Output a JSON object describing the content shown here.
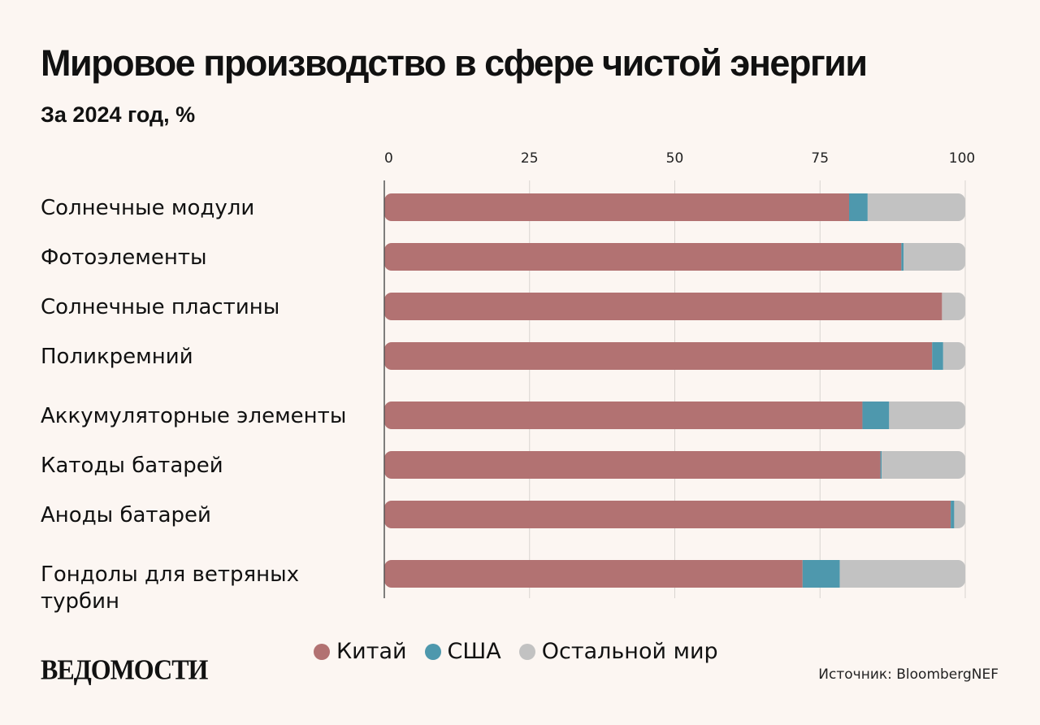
{
  "header": {
    "title": "Мировое производство в сфере чистой энергии",
    "subtitle": "За 2024 год, %"
  },
  "colors": {
    "china": "#b27272",
    "usa": "#4e98ad",
    "rest": "#c2c2c2",
    "background": "#fcf6f2"
  },
  "chart_data": {
    "type": "bar",
    "orientation": "horizontal",
    "stacked": true,
    "title": "Мировое производство в сфере чистой энергии",
    "subtitle": "За 2024 год, %",
    "xlim": [
      0,
      100
    ],
    "xticks": [
      0,
      25,
      50,
      75,
      100
    ],
    "grid": true,
    "categories": [
      "Солнечные модули",
      "Фотоэлементы",
      "Солнечные пластины",
      "Поликремний",
      "Аккумуляторные элементы",
      "Катоды батарей",
      "Аноды батарей",
      "Гондолы для ветряных турбин"
    ],
    "series": [
      {
        "name": "Китай",
        "values": [
          80,
          89,
          96,
          94.3,
          82.3,
          85.4,
          97.5,
          72
        ]
      },
      {
        "name": "США",
        "values": [
          3.2,
          0.4,
          0,
          1.9,
          4.6,
          0.2,
          0.6,
          6.4
        ]
      },
      {
        "name": "Остальной мир",
        "values": [
          16.8,
          10.6,
          4,
          3.8,
          13.1,
          14.4,
          1.9,
          21.6
        ]
      }
    ],
    "legend": "bottom"
  },
  "legend": {
    "china": "Китай",
    "usa": "США",
    "rest": "Остальной мир"
  },
  "footer": {
    "logo": "ВЕДОМОСТИ",
    "source": "Источник: BloombergNEF"
  }
}
